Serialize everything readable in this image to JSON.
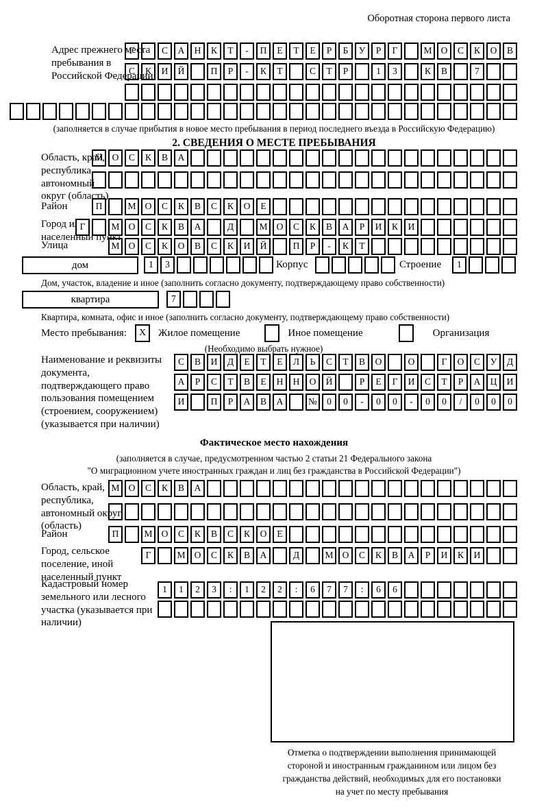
{
  "page": {
    "header": "Оборотная сторона первого листа"
  },
  "prev_address": {
    "label": "Адрес прежнего места пребывания в Российской Федерации",
    "row1": {
      "text": "Г САНКТ-ПЕТЕРБУРГ МОСКОВ",
      "len": 24
    },
    "row2": {
      "text": "СКИЙ ПР-КТ СТР 13 КВ 7",
      "len": 24
    },
    "row3": {
      "text": "",
      "len": 24
    },
    "row4": {
      "text": "",
      "len": 31
    },
    "note": "(заполняется в случае прибытия в новое место пребывания в период последнего въезда в Российскую Федерацию)"
  },
  "section2": {
    "title": "2. СВЕДЕНИЯ О МЕСТЕ ПРЕБЫВАНИЯ",
    "region": {
      "label": "Область, край, республика, автономный округ (область)",
      "row1": {
        "text": "МОСКВА",
        "len": 26
      },
      "row2": {
        "text": "",
        "len": 26
      }
    },
    "district": {
      "label": "Район",
      "row": {
        "text": "П МОСКВСКОЕ",
        "len": 26
      }
    },
    "city": {
      "label": "Город или другой населенный пункт",
      "row": {
        "text": "Г МОСКВА Д МОСКВАРИКИ",
        "len": 27
      }
    },
    "street": {
      "label": "Улица",
      "row": {
        "text": "МОСКОВСКИЙ ПР-КТ",
        "len": 25
      }
    },
    "house": {
      "box_label": "дом",
      "cells": {
        "text": "13",
        "len": 8
      },
      "korpus_label": "Корпус",
      "korpus_cells": {
        "text": "",
        "len": 5
      },
      "stroenie_label": "Строение",
      "stroenie_cells": {
        "text": "1",
        "len": 4
      },
      "note": "Дом, участок, владение и иное (заполнить согласно документу, подтверждающему право собственности)"
    },
    "apartment": {
      "box_label": "квартира",
      "cells": {
        "text": "7",
        "len": 4
      },
      "note": "Квартира, комната, офис и иное (заполнить согласно документу, подтверждающему право собственности)"
    },
    "stay_type": {
      "label": "Место пребывания:",
      "options": [
        {
          "label": "Жилое помещение",
          "mark": "X"
        },
        {
          "label": "Иное помещение",
          "mark": ""
        },
        {
          "label": "Организация",
          "mark": ""
        }
      ],
      "note": "(Необходимо выбрать нужное)"
    },
    "document": {
      "label": "Наименование и реквизиты документа, подтверждающего право пользования помещением (строением, сооружением) (указывается при наличии)",
      "row1": {
        "text": "СВИДЕТЕЛЬСТВО О ГОСУД",
        "len": 21
      },
      "row2": {
        "text": "АРСТВЕННОЙ РЕГИСТРАЦИ",
        "len": 21
      },
      "row3": {
        "text": "И ПРАВА №00-00-00/000",
        "len": 21
      }
    }
  },
  "fact_location": {
    "title": "Фактическое место нахождения",
    "note1": "(заполняется в случае, предусмотренном частью 2 статьи 21 Федерального закона",
    "note2": "\"О миграционном учете иностранных граждан и лиц без гражданства в Российской Федерации\")",
    "region": {
      "label": "Область, край, республика, автономный округ (область)",
      "row1": {
        "text": "МОСКВА",
        "len": 25
      },
      "row2": {
        "text": "",
        "len": 25
      }
    },
    "district": {
      "label": "Район",
      "row": {
        "text": "П МОСКВСКОЕ",
        "len": 25
      }
    },
    "city": {
      "label": "Город, сельское поселение, иной населенный пункт",
      "row": {
        "text": "Г МОСКВА Д МОСКВАРИКИ",
        "len": 23
      }
    },
    "cadastre": {
      "label": "Кадастровый номер земельного или лесного участка (указывается при наличии)",
      "row1": {
        "text": "1123:122:677:66",
        "len": 22
      },
      "row2": {
        "text": "",
        "len": 22
      }
    },
    "stamp_note_lines": [
      "Отметка о подтверждении выполнения принимающей",
      "стороной и иностранным гражданином или лицом без",
      "гражданства действий, необходимых для его постановки",
      "на учет по месту пребывания"
    ]
  }
}
